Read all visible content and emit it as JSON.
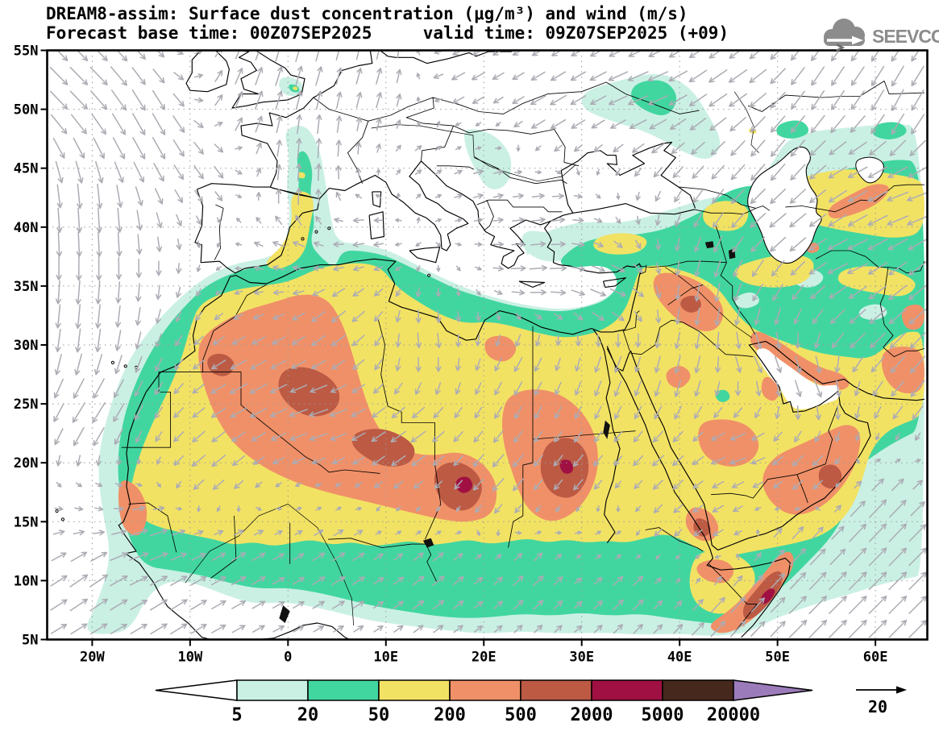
{
  "header": {
    "line1": "DREAM8-assim: Surface dust concentration (μg/m³) and wind (m/s)",
    "line2": "Forecast base time: 00Z07SEP2025     valid time: 09Z07SEP2025 (+09)"
  },
  "logo": {
    "text": "SEEVCCC",
    "color": "#8c8c8c"
  },
  "axes": {
    "x_labels": [
      "20W",
      "10W",
      "0",
      "10E",
      "20E",
      "30E",
      "40E",
      "50E",
      "60E"
    ],
    "x_lons": [
      -20,
      -10,
      0,
      10,
      20,
      30,
      40,
      50,
      60
    ],
    "y_labels": [
      "55N",
      "50N",
      "45N",
      "40N",
      "35N",
      "30N",
      "25N",
      "20N",
      "15N",
      "10N",
      "5N"
    ],
    "y_lats": [
      55,
      50,
      45,
      40,
      35,
      30,
      25,
      20,
      15,
      10,
      5
    ]
  },
  "legend": {
    "values": [
      "5",
      "20",
      "50",
      "200",
      "500",
      "2000",
      "5000",
      "20000"
    ],
    "colors": [
      "#ffffff",
      "#caf0e4",
      "#41d6a0",
      "#f2e264",
      "#f09068",
      "#bc5a44",
      "#a01042",
      "#46291c",
      "#9c7bba"
    ]
  },
  "wind": {
    "ref_label": "20",
    "arrow_color": "#acacb4"
  },
  "map": {
    "lon_min": -24.6,
    "lon_max": 65.3,
    "lat_min": 5,
    "lat_max": 55,
    "grid_color": "#9a9a9a",
    "coast_color": "#000000",
    "frame_color": "#000000"
  }
}
